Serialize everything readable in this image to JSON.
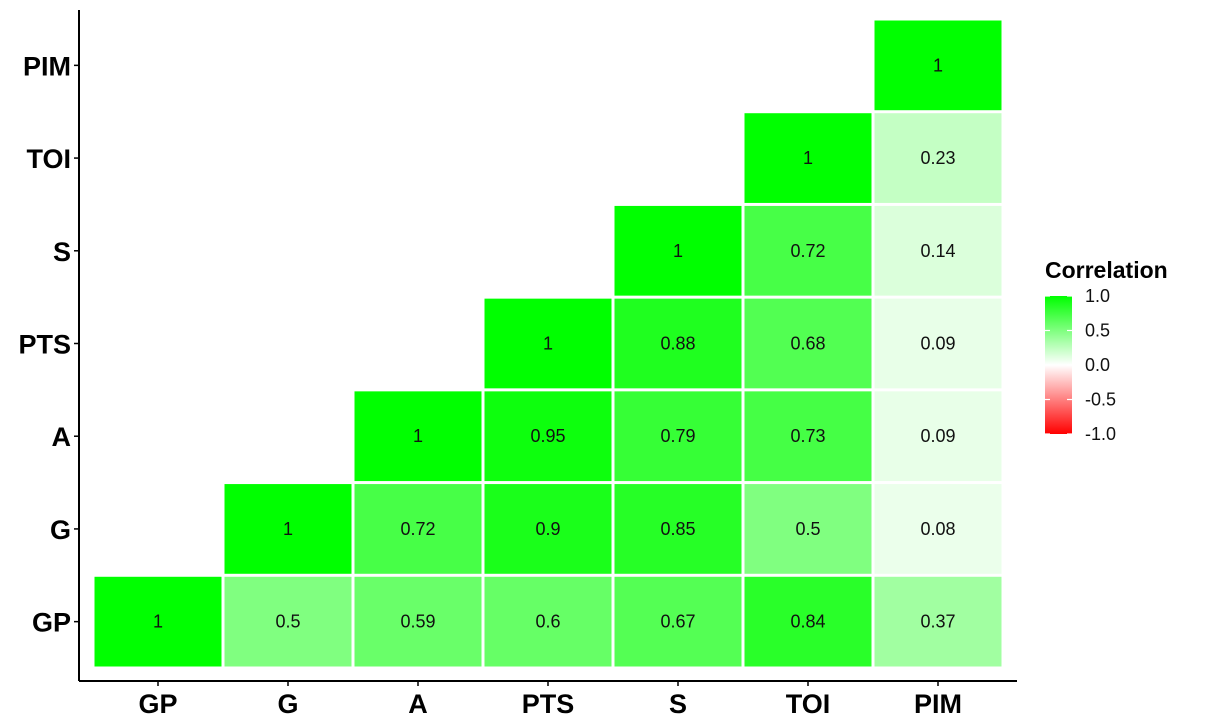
{
  "chart_data": {
    "type": "heatmap",
    "variables": [
      "GP",
      "G",
      "A",
      "PTS",
      "S",
      "TOI",
      "PIM"
    ],
    "x_labels": [
      "GP",
      "G",
      "A",
      "PTS",
      "S",
      "TOI",
      "PIM"
    ],
    "y_labels": [
      "GP",
      "G",
      "A",
      "PTS",
      "S",
      "TOI",
      "PIM"
    ],
    "cells": [
      {
        "x": "GP",
        "y": "GP",
        "value": 1,
        "label": "1"
      },
      {
        "x": "G",
        "y": "GP",
        "value": 0.5,
        "label": "0.5"
      },
      {
        "x": "A",
        "y": "GP",
        "value": 0.59,
        "label": "0.59"
      },
      {
        "x": "PTS",
        "y": "GP",
        "value": 0.6,
        "label": "0.6"
      },
      {
        "x": "S",
        "y": "GP",
        "value": 0.67,
        "label": "0.67"
      },
      {
        "x": "TOI",
        "y": "GP",
        "value": 0.84,
        "label": "0.84"
      },
      {
        "x": "PIM",
        "y": "GP",
        "value": 0.37,
        "label": "0.37"
      },
      {
        "x": "G",
        "y": "G",
        "value": 1,
        "label": "1"
      },
      {
        "x": "A",
        "y": "G",
        "value": 0.72,
        "label": "0.72"
      },
      {
        "x": "PTS",
        "y": "G",
        "value": 0.9,
        "label": "0.9"
      },
      {
        "x": "S",
        "y": "G",
        "value": 0.85,
        "label": "0.85"
      },
      {
        "x": "TOI",
        "y": "G",
        "value": 0.5,
        "label": "0.5"
      },
      {
        "x": "PIM",
        "y": "G",
        "value": 0.08,
        "label": "0.08"
      },
      {
        "x": "A",
        "y": "A",
        "value": 1,
        "label": "1"
      },
      {
        "x": "PTS",
        "y": "A",
        "value": 0.95,
        "label": "0.95"
      },
      {
        "x": "S",
        "y": "A",
        "value": 0.79,
        "label": "0.79"
      },
      {
        "x": "TOI",
        "y": "A",
        "value": 0.73,
        "label": "0.73"
      },
      {
        "x": "PIM",
        "y": "A",
        "value": 0.09,
        "label": "0.09"
      },
      {
        "x": "PTS",
        "y": "PTS",
        "value": 1,
        "label": "1"
      },
      {
        "x": "S",
        "y": "PTS",
        "value": 0.88,
        "label": "0.88"
      },
      {
        "x": "TOI",
        "y": "PTS",
        "value": 0.68,
        "label": "0.68"
      },
      {
        "x": "PIM",
        "y": "PTS",
        "value": 0.09,
        "label": "0.09"
      },
      {
        "x": "S",
        "y": "S",
        "value": 1,
        "label": "1"
      },
      {
        "x": "TOI",
        "y": "S",
        "value": 0.72,
        "label": "0.72"
      },
      {
        "x": "PIM",
        "y": "S",
        "value": 0.14,
        "label": "0.14"
      },
      {
        "x": "TOI",
        "y": "TOI",
        "value": 1,
        "label": "1"
      },
      {
        "x": "PIM",
        "y": "TOI",
        "value": 0.23,
        "label": "0.23"
      },
      {
        "x": "PIM",
        "y": "PIM",
        "value": 1,
        "label": "1"
      }
    ],
    "legend": {
      "title": "Correlation",
      "placement": "right",
      "range": [
        -1,
        1
      ],
      "ticks": [
        1.0,
        0.5,
        0.0,
        -0.5,
        -1.0
      ],
      "tick_labels": [
        "1.0",
        "0.5",
        "0.0",
        "-0.5",
        "-1.0"
      ]
    },
    "colors": {
      "high": "#00ff00",
      "mid": "#ffffff",
      "low": "#ff0000",
      "cell_border": "#ffffff",
      "axis_line": "#000000"
    },
    "grid": false,
    "title": "",
    "xlabel": "",
    "ylabel": ""
  }
}
